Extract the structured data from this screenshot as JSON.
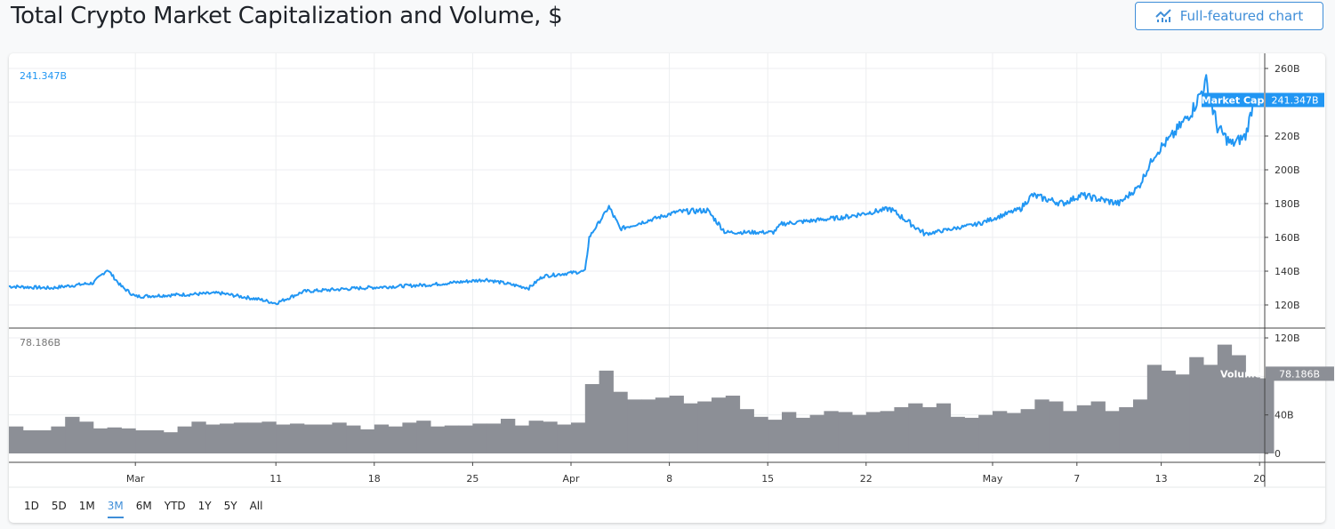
{
  "title": "Total Crypto Market Capitalization and Volume, $",
  "full_chart_button": "Full-featured chart",
  "ranges": [
    "1D",
    "5D",
    "1M",
    "3M",
    "6M",
    "YTD",
    "1Y",
    "5Y",
    "All"
  ],
  "active_range": "3M",
  "colors": {
    "price": "#2196f3",
    "volume": "#8c8f96",
    "accent": "#3f8ed8"
  },
  "chart_data": [
    {
      "type": "line",
      "name": "Market Cap",
      "legend_value": "241.347B",
      "last_value_label": "241.347B",
      "y_ticks": [
        "260B",
        "220B",
        "200B",
        "180B",
        "160B",
        "140B",
        "120B"
      ],
      "y_tick_values": [
        260,
        220,
        200,
        180,
        160,
        140,
        120
      ],
      "ylim": [
        111,
        269
      ],
      "x_ticks": [
        "Mar",
        "11",
        "18",
        "25",
        "Apr",
        "8",
        "15",
        "22",
        "May",
        "7",
        "13",
        "20"
      ],
      "x_tick_days": [
        9,
        19,
        26,
        33,
        40,
        47,
        54,
        61,
        70,
        76,
        82,
        89
      ],
      "points_day_value": [
        [
          0,
          131
        ],
        [
          3,
          130
        ],
        [
          6,
          133
        ],
        [
          7,
          141
        ],
        [
          8,
          131
        ],
        [
          9,
          125
        ],
        [
          12,
          126
        ],
        [
          15,
          127
        ],
        [
          18,
          123
        ],
        [
          19,
          121
        ],
        [
          21,
          128
        ],
        [
          25,
          130
        ],
        [
          30,
          132
        ],
        [
          34,
          135
        ],
        [
          37,
          130
        ],
        [
          38,
          137
        ],
        [
          41,
          140
        ],
        [
          41.3,
          160
        ],
        [
          42.7,
          178
        ],
        [
          43.5,
          165
        ],
        [
          47.5,
          175
        ],
        [
          49.7,
          176
        ],
        [
          51,
          163
        ],
        [
          54.4,
          163
        ],
        [
          55,
          168
        ],
        [
          59.5,
          172
        ],
        [
          62.7,
          177
        ],
        [
          65.2,
          162
        ],
        [
          69,
          168
        ],
        [
          72,
          177
        ],
        [
          72.8,
          185
        ],
        [
          75,
          180
        ],
        [
          76.3,
          185
        ],
        [
          79,
          180
        ],
        [
          80.4,
          190
        ],
        [
          81.6,
          210
        ],
        [
          82.8,
          220
        ],
        [
          84.2,
          235
        ],
        [
          85.2,
          252
        ],
        [
          86,
          225
        ],
        [
          87,
          215
        ],
        [
          88,
          220
        ],
        [
          88.6,
          241.3
        ]
      ]
    },
    {
      "type": "bar",
      "name": "Volume",
      "legend_value": "78.186B",
      "last_value_label": "78.186B",
      "y_ticks": [
        "120B",
        "40B",
        "0"
      ],
      "y_tick_values": [
        120,
        40,
        0
      ],
      "ylim": [
        -9,
        127
      ],
      "values": [
        28,
        24,
        24,
        28,
        38,
        33,
        26,
        27,
        26,
        24,
        24,
        22,
        28,
        33,
        30,
        31,
        32,
        32,
        33,
        30,
        31,
        30,
        30,
        32,
        29,
        25,
        30,
        28,
        32,
        34,
        28,
        29,
        29,
        31,
        31,
        36,
        29,
        34,
        33,
        30,
        32,
        72,
        86,
        64,
        56,
        56,
        58,
        60,
        52,
        54,
        58,
        60,
        46,
        38,
        35,
        43,
        37,
        40,
        44,
        43,
        40,
        43,
        44,
        48,
        52,
        48,
        52,
        38,
        37,
        40,
        44,
        42,
        46,
        56,
        54,
        44,
        50,
        54,
        44,
        48,
        56,
        92,
        86,
        82,
        100,
        92,
        113,
        102,
        80,
        78
      ]
    }
  ]
}
